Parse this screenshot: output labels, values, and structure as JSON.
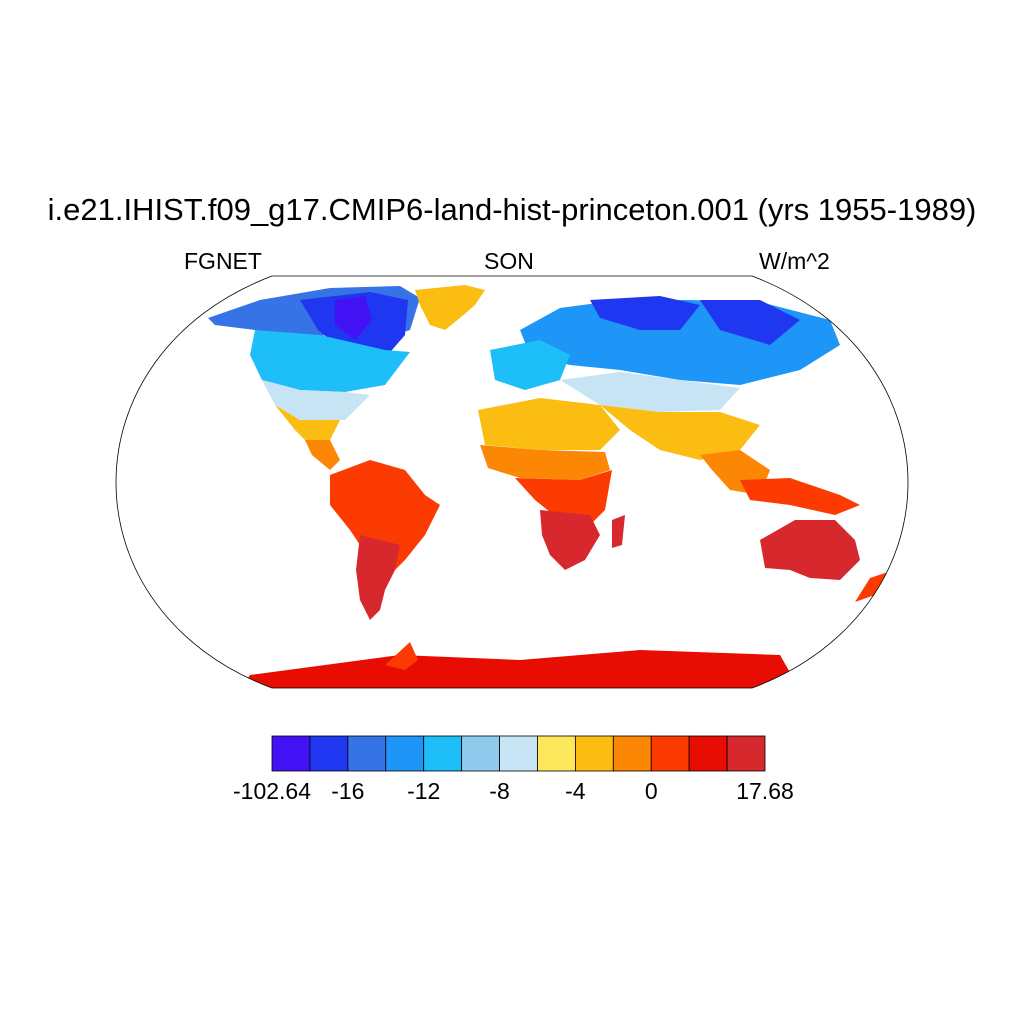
{
  "title": "i.e21.IHIST.f09_g17.CMIP6-land-hist-princeton.001 (yrs 1955-1989)",
  "left_label": "FGNET",
  "center_label": "SON",
  "right_label": "W/m^2",
  "colorbar": {
    "colors": [
      "#4212f5",
      "#1f37f0",
      "#3673e6",
      "#1e96f8",
      "#1ebef8",
      "#8fcaec",
      "#c7e4f5",
      "#fde75c",
      "#fcbd12",
      "#fc8705",
      "#fc3b02",
      "#e80d03",
      "#d7282d"
    ],
    "labels": [
      "-102.64",
      "-16",
      "-12",
      "-8",
      "-4",
      "0",
      "17.68"
    ]
  }
}
